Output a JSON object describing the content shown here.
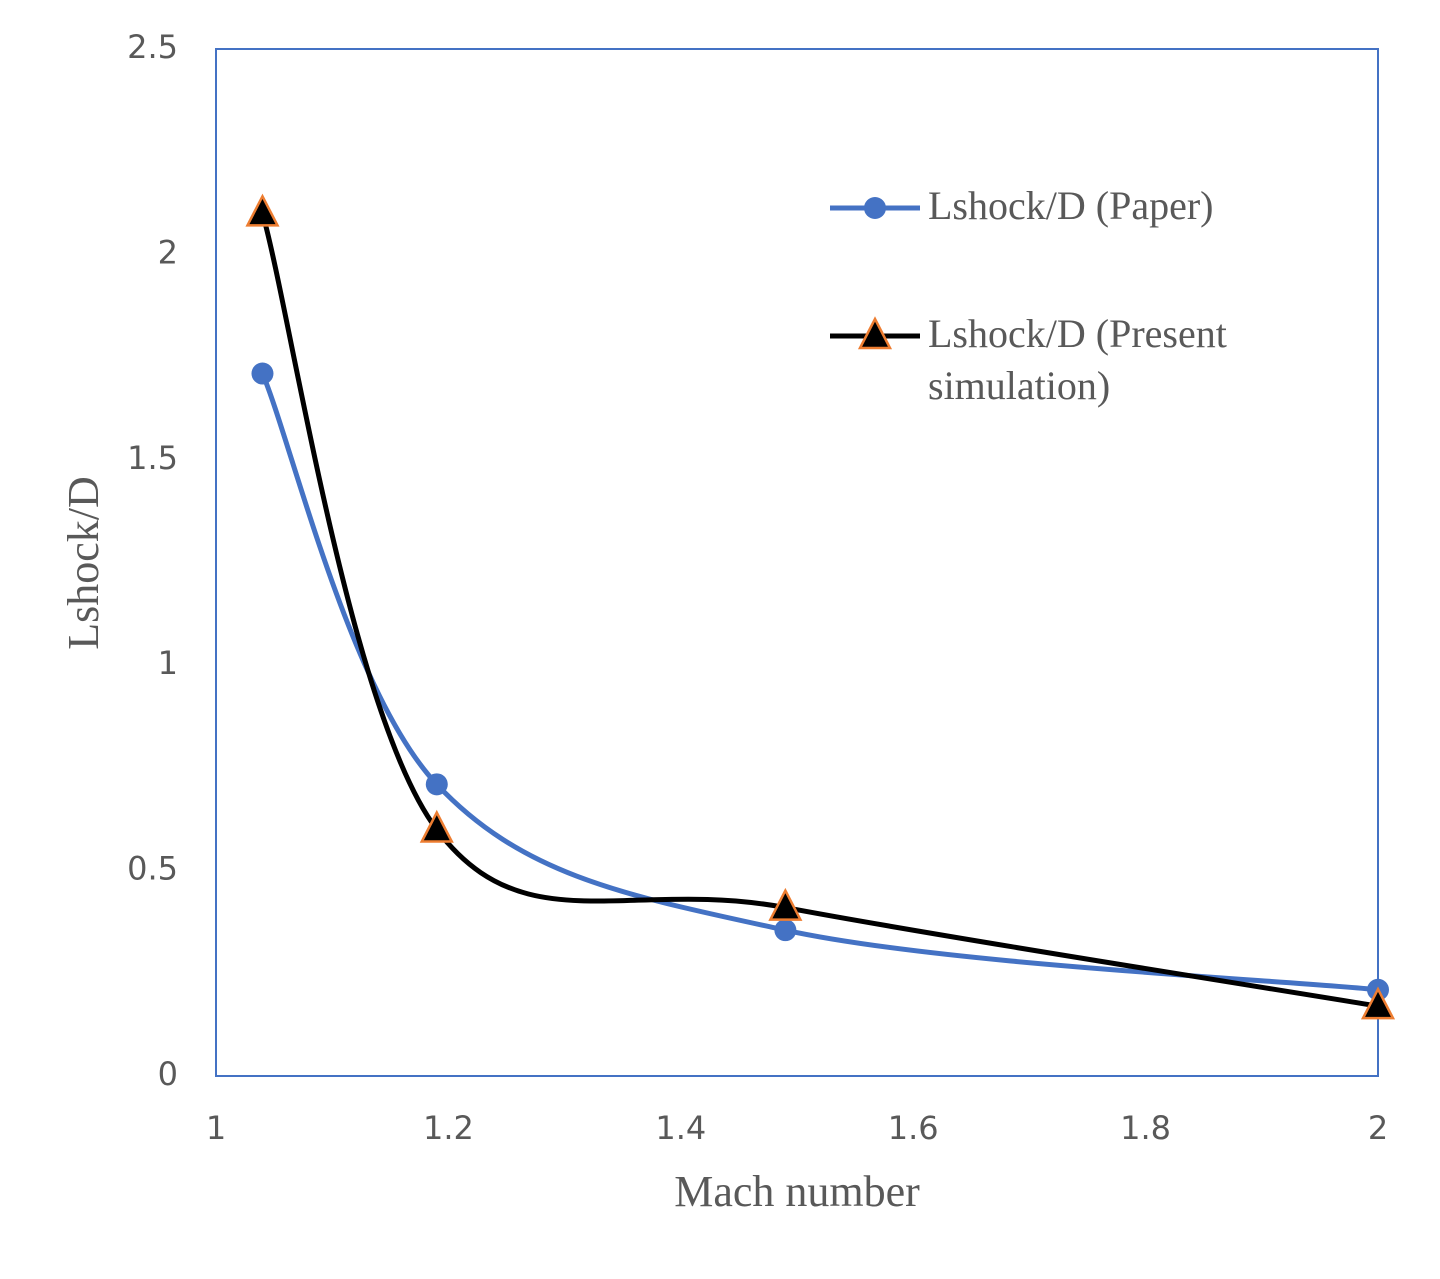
{
  "chart_data": {
    "type": "line",
    "x_label": "Mach number",
    "y_label": "Lshock/D",
    "xlim": [
      1,
      2
    ],
    "xticks": [
      1,
      1.2,
      1.4,
      1.6,
      1.8,
      2
    ],
    "ylim": [
      0,
      2.5
    ],
    "yticks": [
      0,
      0.5,
      1,
      1.5,
      2,
      2.5
    ],
    "smooth": true,
    "legend": "upper right",
    "series": [
      {
        "name": "Lshock/D (Paper)",
        "color": "#4472c4",
        "marker": "circle",
        "x": [
          1.04,
          1.19,
          1.49,
          2
        ],
        "values": [
          1.71,
          0.71,
          0.355,
          0.21
        ]
      },
      {
        "name": "Lshock/D (Present simulation)",
        "color": "#000000",
        "marker": "triangle",
        "marker_edge": "#ed7d31",
        "x": [
          1.04,
          1.19,
          1.49,
          2
        ],
        "values": [
          2.1,
          0.6,
          0.41,
          0.17
        ]
      }
    ]
  }
}
